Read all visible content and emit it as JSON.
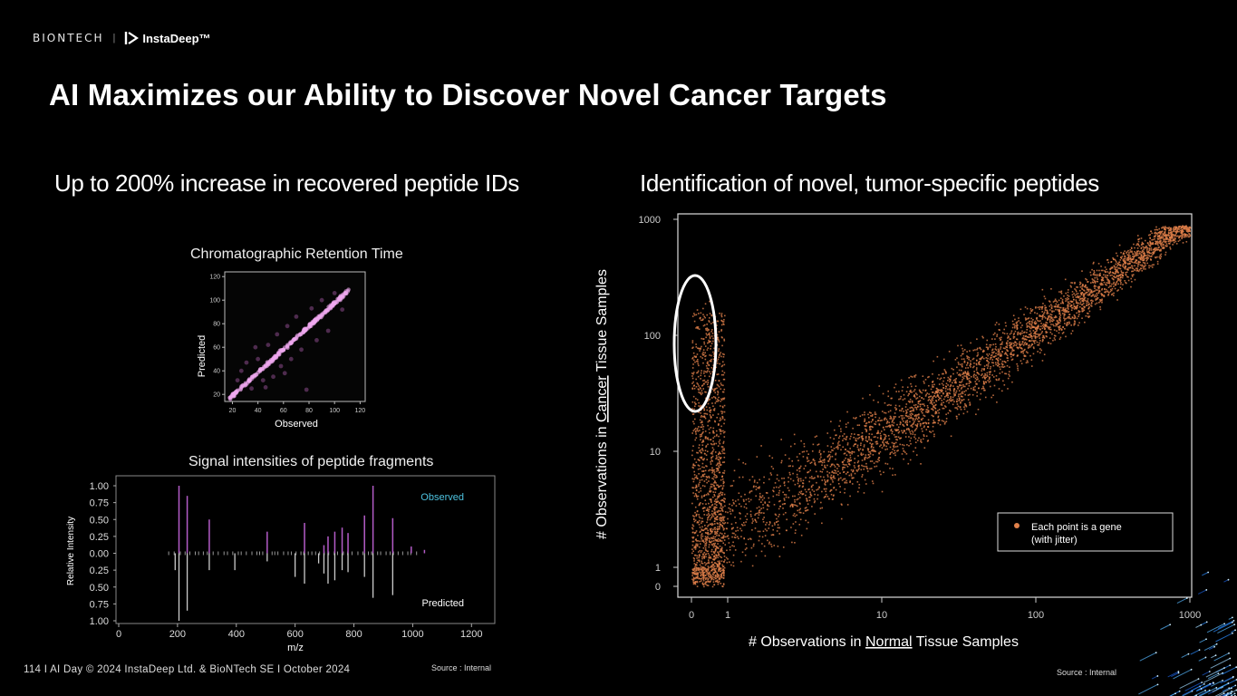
{
  "brand": {
    "biontech": "BIONTECH",
    "separator": "|",
    "instadeep": "InstaDeep™"
  },
  "title": "AI Maximizes our Ability to Discover Novel Cancer Targets",
  "left": {
    "heading": "Up to 200% increase in recovered peptide IDs",
    "source": "Source : Internal"
  },
  "right": {
    "heading": "Identification of novel, tumor-specific peptides",
    "source": "Source : Internal"
  },
  "footer": "114   I   AI Day © 2024 InstaDeep Ltd. & BioNTech SE   I   October 2024",
  "colors": {
    "scatter": "#e0804a",
    "rt_points": "#f0a8f0",
    "observed": "#b45cc8",
    "predicted": "#cccccc",
    "observed_label": "#4ec3e0"
  },
  "chart_data": [
    {
      "type": "scatter",
      "title": "Chromatographic Retention Time",
      "xlabel": "Observed",
      "ylabel": "Predicted",
      "xticks": [
        20,
        40,
        60,
        80,
        100,
        120
      ],
      "yticks": [
        20,
        40,
        60,
        80,
        100,
        120
      ],
      "xlim": [
        14,
        124
      ],
      "ylim": [
        14,
        124
      ],
      "trend": {
        "x": [
          18,
          112
        ],
        "y": [
          17,
          109
        ]
      },
      "outliers": [
        {
          "x": 27,
          "y": 40
        },
        {
          "x": 31,
          "y": 47
        },
        {
          "x": 35,
          "y": 25
        },
        {
          "x": 40,
          "y": 50
        },
        {
          "x": 44,
          "y": 32
        },
        {
          "x": 48,
          "y": 62
        },
        {
          "x": 52,
          "y": 35
        },
        {
          "x": 55,
          "y": 71
        },
        {
          "x": 58,
          "y": 44
        },
        {
          "x": 63,
          "y": 78
        },
        {
          "x": 66,
          "y": 50
        },
        {
          "x": 70,
          "y": 86
        },
        {
          "x": 74,
          "y": 58
        },
        {
          "x": 78,
          "y": 24
        },
        {
          "x": 82,
          "y": 93
        },
        {
          "x": 86,
          "y": 66
        },
        {
          "x": 90,
          "y": 100
        },
        {
          "x": 95,
          "y": 74
        },
        {
          "x": 100,
          "y": 106
        },
        {
          "x": 38,
          "y": 60
        },
        {
          "x": 24,
          "y": 32
        },
        {
          "x": 61,
          "y": 38
        },
        {
          "x": 106,
          "y": 92
        },
        {
          "x": 46,
          "y": 26
        }
      ]
    },
    {
      "type": "bar",
      "title": "Signal intensities of peptide fragments",
      "xlabel": "m/z",
      "ylabel": "Relative Intensity",
      "xticks": [
        0,
        200,
        400,
        600,
        800,
        1000,
        1200
      ],
      "yticks_labels": [
        "1.00",
        "0.75",
        "0.50",
        "0.25",
        "0.00",
        "0.25",
        "0.50",
        "0.75",
        "1.00"
      ],
      "xlim": [
        0,
        1270
      ],
      "series": [
        {
          "name": "Observed",
          "x": [
            205,
            233,
            308,
            505,
            632,
            698,
            712,
            735,
            760,
            780,
            836,
            865,
            932,
            995,
            1040
          ],
          "values": [
            1.0,
            0.85,
            0.5,
            0.32,
            0.45,
            0.12,
            0.25,
            0.32,
            0.38,
            0.3,
            0.56,
            1.0,
            0.52,
            0.1,
            0.05
          ]
        },
        {
          "name": "Predicted",
          "x": [
            192,
            205,
            233,
            308,
            395,
            505,
            600,
            632,
            680,
            698,
            712,
            735,
            760,
            780,
            836,
            865,
            932
          ],
          "values": [
            0.25,
            1.0,
            0.85,
            0.25,
            0.25,
            0.12,
            0.35,
            0.45,
            0.15,
            0.3,
            0.45,
            0.4,
            0.25,
            0.28,
            0.35,
            0.66,
            0.62
          ]
        }
      ]
    },
    {
      "type": "scatter",
      "xlabel_parts": [
        "# Observations in ",
        "Normal",
        " Tissue Samples"
      ],
      "ylabel_parts": [
        "# Observations in ",
        "Cancer",
        " Tissue Samples"
      ],
      "xticks": [
        "0",
        "1",
        "10",
        "100",
        "1000"
      ],
      "yticks": [
        "0",
        "1",
        "10",
        "100",
        "1000"
      ],
      "scale": "symlog",
      "legend": "Each point is a gene\n(with jitter)",
      "legend_position": "lower-right"
    }
  ]
}
